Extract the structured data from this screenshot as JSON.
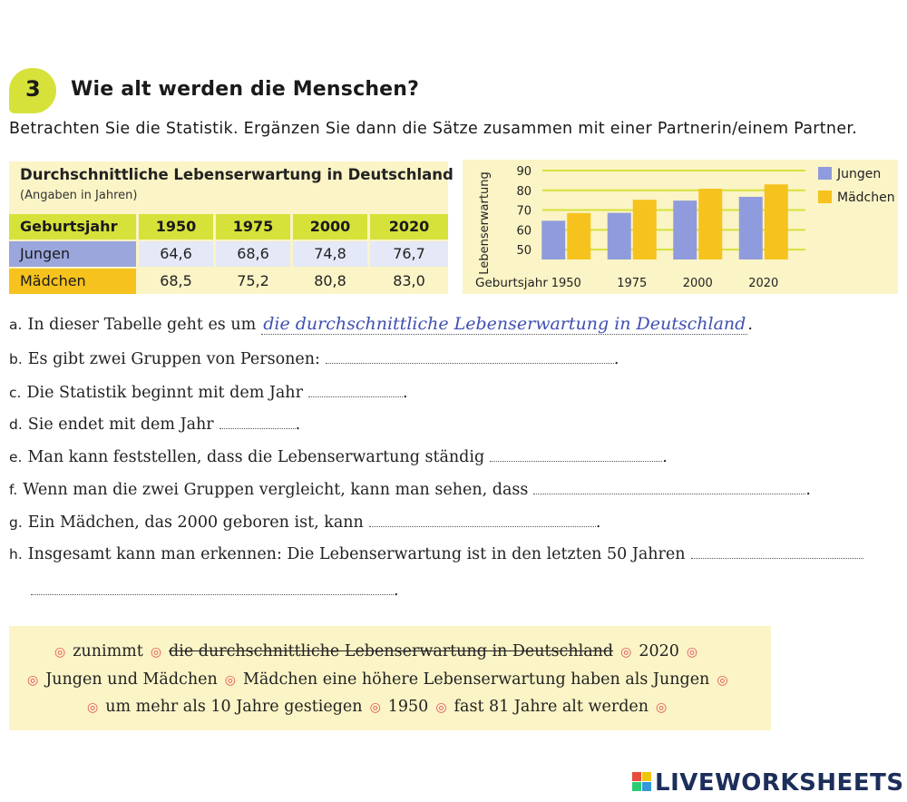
{
  "exercise": {
    "number": "3",
    "title": "Wie alt werden die Menschen?",
    "instruction": "Betrachten Sie die Statistik. Ergänzen Sie dann die Sätze zusammen mit einer Partnerin/einem Partner."
  },
  "table": {
    "title": "Durchschnittliche Lebenserwartung in Deutschland",
    "subtitle": "(Angaben in Jahren)",
    "headers": [
      "Geburtsjahr",
      "1950",
      "1975",
      "2000",
      "2020"
    ],
    "rows": [
      {
        "label": "Jungen",
        "values": [
          "64,6",
          "68,6",
          "74,8",
          "76,7"
        ]
      },
      {
        "label": "Mädchen",
        "values": [
          "68,5",
          "75,2",
          "80,8",
          "83,0"
        ]
      }
    ]
  },
  "chart_data": {
    "type": "bar",
    "categories": [
      "1950",
      "1975",
      "2000",
      "2020"
    ],
    "series": [
      {
        "name": "Jungen",
        "values": [
          64.6,
          68.6,
          74.8,
          76.7
        ],
        "color": "#8f9bdc"
      },
      {
        "name": "Mädchen",
        "values": [
          68.5,
          75.2,
          80.8,
          83.0
        ],
        "color": "#f6c21d"
      }
    ],
    "xlabel": "Geburtsjahr",
    "ylabel": "Lebenserwartung",
    "ylim": [
      45,
      90
    ],
    "yticks": [
      "50",
      "60",
      "70",
      "80",
      "90"
    ],
    "legend_position": "right"
  },
  "sentences": [
    {
      "letter": "a.",
      "text": "In dieser Tabelle geht es um",
      "answer": "die durchschnittliche Lebenserwartung in Deutschland",
      "end": "."
    },
    {
      "letter": "b.",
      "text": "Es gibt zwei Gruppen von Personen:",
      "end": "."
    },
    {
      "letter": "c.",
      "text": "Die Statistik beginnt mit dem Jahr",
      "end": "."
    },
    {
      "letter": "d.",
      "text": "Sie endet mit dem Jahr",
      "end": "."
    },
    {
      "letter": "e.",
      "text": "Man kann feststellen, dass die Lebenserwartung ständig",
      "end": "."
    },
    {
      "letter": "f.",
      "text": "Wenn man die zwei Gruppen vergleicht, kann man sehen, dass",
      "end": "."
    },
    {
      "letter": "g.",
      "text": "Ein Mädchen, das 2000 geboren ist, kann",
      "end": "."
    },
    {
      "letter": "h.",
      "text": "Insgesamt kann man erkennen: Die Lebenserwartung ist in den letzten 50 Jahren",
      "end": "."
    }
  ],
  "word_bank": {
    "line1": [
      "zunimmt",
      "die durchschnittliche Lebenserwartung in Deutschland",
      "2020"
    ],
    "line2": [
      "Jungen und Mädchen",
      "Mädchen eine höhere Lebenserwartung haben als Jungen"
    ],
    "line3": [
      "um mehr als 10 Jahre gestiegen",
      "1950",
      "fast 81 Jahre alt werden"
    ]
  },
  "logo": {
    "text": "LIVEWORKSHEETS"
  }
}
